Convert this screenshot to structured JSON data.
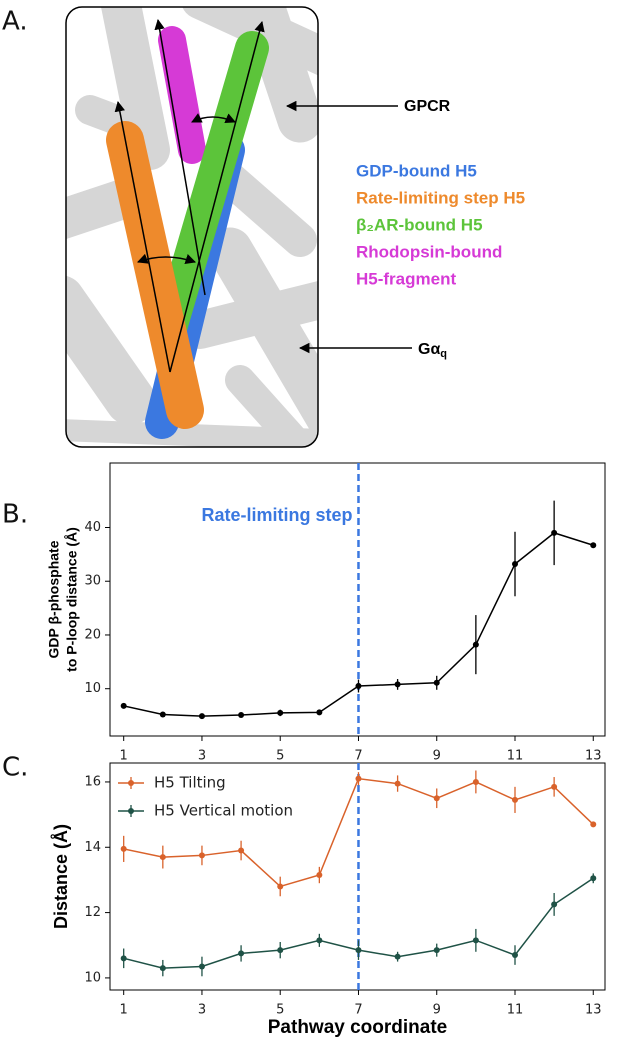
{
  "panel_a": {
    "label": "A.",
    "gpcr": "GPCR",
    "galpha": {
      "text": "Gα",
      "subscript": "q"
    },
    "legend": [
      {
        "text": "GDP-bound H5",
        "color": "#3b78e0"
      },
      {
        "text": "Rate-limiting step H5",
        "color": "#ee8a2c"
      },
      {
        "text": "β₂AR-bound H5",
        "color": "#5cc43a"
      },
      {
        "text": "Rhodopsin-bound",
        "color": "#d63ad6"
      },
      {
        "text": "H5-fragment",
        "color": "#d63ad6"
      }
    ]
  },
  "chart_data": [
    {
      "type": "line",
      "label": "B.",
      "ylabel": [
        "GDP β-phosphate",
        "to P-loop distance (Å)"
      ],
      "x": [
        1,
        2,
        3,
        4,
        5,
        6,
        7,
        8,
        9,
        10,
        11,
        12,
        13
      ],
      "values": [
        6.8,
        5.2,
        4.9,
        5.1,
        5.5,
        5.6,
        10.5,
        10.8,
        11.1,
        18.2,
        33.2,
        39.0,
        36.7
      ],
      "errors": [
        0.3,
        0.3,
        0.2,
        0.3,
        0.6,
        0.3,
        1.2,
        1.0,
        1.3,
        5.5,
        6.0,
        6.0,
        0.3
      ],
      "color": "#000000",
      "xlim": [
        0.65,
        13.3
      ],
      "ylim": [
        1.2,
        52
      ],
      "xticks": [
        1,
        3,
        5,
        7,
        9,
        11,
        13
      ],
      "yticks": [
        10,
        20,
        30,
        40
      ],
      "vline": {
        "x": 7,
        "color": "#3b78e0",
        "label": "Rate-limiting step"
      }
    },
    {
      "type": "line",
      "label": "C.",
      "ylabel": "Distance (Å)",
      "xlabel": "Pathway coordinate",
      "x": [
        1,
        2,
        3,
        4,
        5,
        6,
        7,
        8,
        9,
        10,
        11,
        12,
        13
      ],
      "series": [
        {
          "name": "H5 Tilting",
          "color": "#d9622b",
          "values": [
            13.95,
            13.7,
            13.75,
            13.9,
            12.8,
            13.15,
            16.1,
            15.95,
            15.5,
            16.0,
            15.45,
            15.85,
            14.7
          ],
          "errors": [
            0.4,
            0.35,
            0.3,
            0.3,
            0.3,
            0.25,
            0.2,
            0.25,
            0.3,
            0.35,
            0.4,
            0.3,
            0.05
          ]
        },
        {
          "name": "H5 Vertical motion",
          "color": "#1f5246",
          "values": [
            10.6,
            10.3,
            10.35,
            10.75,
            10.85,
            11.15,
            10.85,
            10.65,
            10.85,
            11.15,
            10.7,
            12.25,
            13.05
          ],
          "errors": [
            0.3,
            0.25,
            0.3,
            0.25,
            0.25,
            0.2,
            0.3,
            0.15,
            0.2,
            0.35,
            0.3,
            0.35,
            0.15
          ]
        }
      ],
      "xlim": [
        0.65,
        13.3
      ],
      "ylim": [
        9.63,
        16.58
      ],
      "xticks": [
        1,
        3,
        5,
        7,
        9,
        11,
        13
      ],
      "yticks": [
        10,
        12,
        14,
        16
      ],
      "vline": {
        "x": 7,
        "color": "#3b78e0"
      },
      "legend": "upper left"
    }
  ]
}
